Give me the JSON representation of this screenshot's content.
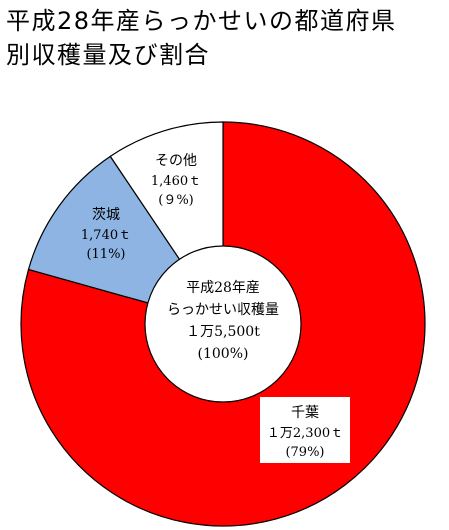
{
  "chart_data": {
    "type": "pie",
    "title": [
      "平成28年産らっかせいの都道府県",
      "別収穫量及び割合"
    ],
    "center_label": [
      "平成28年産",
      "らっかせい収穫量",
      "１万5,500t",
      "(100%)"
    ],
    "slices": [
      {
        "name": "千葉",
        "value": 12300,
        "value_label": "１万2,300ｔ",
        "percent_label": "(79%)",
        "color": "#ff0000"
      },
      {
        "name": "茨城",
        "value": 1740,
        "value_label": "1,740ｔ",
        "percent_label": "(11%)",
        "color": "#8db4e2"
      },
      {
        "name": "その他",
        "value": 1460,
        "value_label": "1,460ｔ",
        "percent_label": "(９%)",
        "color": "#ffffff"
      }
    ]
  }
}
